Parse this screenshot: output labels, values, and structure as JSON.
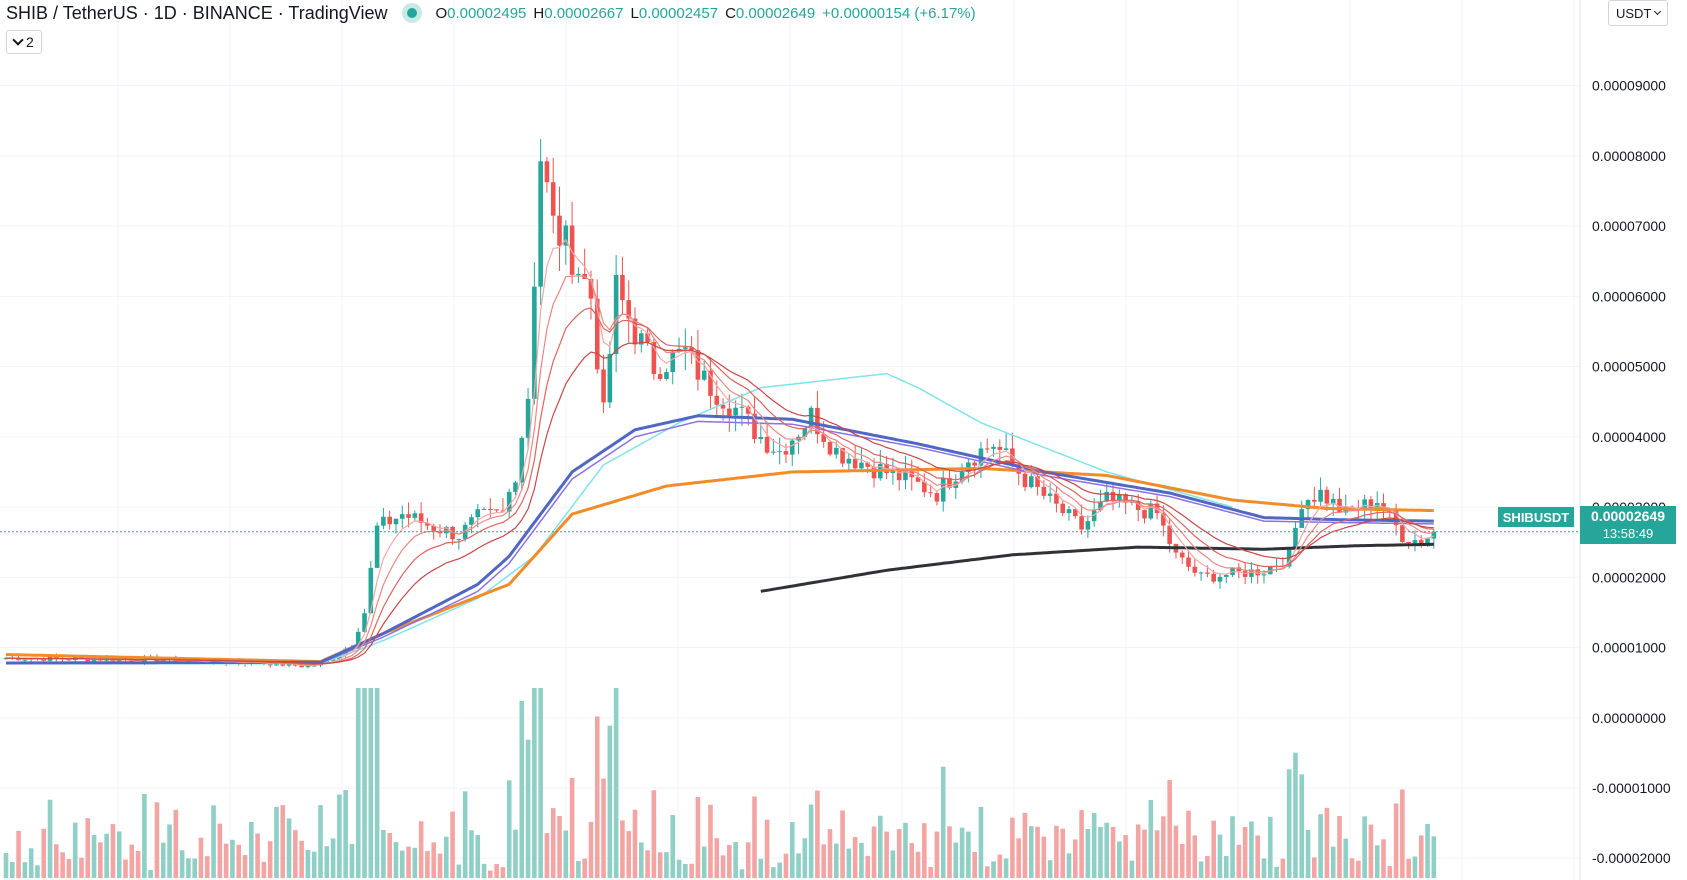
{
  "header": {
    "symbol_title": "SHIB / TetherUS · 1D · BINANCE · TradingView",
    "ohlc": {
      "o_label": "O",
      "o_value": "0.00002495",
      "h_label": "H",
      "h_value": "0.00002667",
      "l_label": "L",
      "l_value": "0.00002457",
      "c_label": "C",
      "c_value": "0.00002649",
      "change": "+0.00000154 (+6.17%)"
    },
    "indicator_count": "2"
  },
  "toolbar": {
    "currency": "USDT"
  },
  "last_price": {
    "symbol": "SHIBUSDT",
    "price": "0.00002649",
    "countdown": "13:58:49"
  },
  "colors": {
    "up": "#26a69a",
    "down": "#ef5350",
    "vol_up": "#8fcfc6",
    "vol_down": "#f3a5a4",
    "ma_orange": "#f28c28",
    "ma_blue": "#5067c4",
    "ma_purple": "#8c70e6",
    "ma_cyan": "#7fe3ec",
    "ma_black": "#2f3338",
    "ribbon": [
      "#f4a8a5",
      "#ec8882",
      "#e0625d",
      "#c84848"
    ]
  },
  "chart_data": {
    "type": "candlestick",
    "y_ticks": [
      "0.00009000",
      "0.00008000",
      "0.00007000",
      "0.00006000",
      "0.00005000",
      "0.00004000",
      "0.00003000",
      "0.00002000",
      "0.00001000",
      "0.00000000",
      "-0.00001000",
      "-0.00002000"
    ],
    "y_tick_values": [
      9e-05,
      8e-05,
      7e-05,
      6e-05,
      5e-05,
      4e-05,
      3e-05,
      2e-05,
      1e-05,
      0,
      -1e-05,
      -2e-05
    ],
    "ylim": [
      -2.31e-05,
      0.0001022
    ],
    "current_price": 2.649e-05,
    "anchors": [
      [
        0,
        8.5e-06
      ],
      [
        25,
        8.2e-06
      ],
      [
        40,
        7.9e-06
      ],
      [
        48,
        7.3e-06
      ],
      [
        51,
        8e-06
      ],
      [
        55,
        1.05e-05
      ],
      [
        57,
        1.5e-05
      ],
      [
        59,
        2.7e-05
      ],
      [
        63,
        2.9e-05
      ],
      [
        67,
        2.75e-05
      ],
      [
        72,
        2.6e-05
      ],
      [
        75,
        2.85e-05
      ],
      [
        79,
        2.9e-05
      ],
      [
        81,
        3.5e-05
      ],
      [
        83,
        4.6e-05
      ],
      [
        85,
        8e-05
      ],
      [
        87,
        7e-05
      ],
      [
        90,
        6.6e-05
      ],
      [
        93,
        6e-05
      ],
      [
        95,
        4.3e-05
      ],
      [
        97,
        6.1e-05
      ],
      [
        100,
        5.5e-05
      ],
      [
        103,
        5e-05
      ],
      [
        108,
        5.2e-05
      ],
      [
        111,
        4.8e-05
      ],
      [
        115,
        4.5e-05
      ],
      [
        120,
        4e-05
      ],
      [
        123,
        3.8e-05
      ],
      [
        128,
        4.3e-05
      ],
      [
        132,
        3.8e-05
      ],
      [
        137,
        3.6e-05
      ],
      [
        143,
        3.4e-05
      ],
      [
        148,
        3.2e-05
      ],
      [
        153,
        3.7e-05
      ],
      [
        157,
        3.9e-05
      ],
      [
        162,
        3.4e-05
      ],
      [
        167,
        3e-05
      ],
      [
        171,
        2.7e-05
      ],
      [
        175,
        3.1e-05
      ],
      [
        179,
        3e-05
      ],
      [
        183,
        2.9e-05
      ],
      [
        186,
        2.3e-05
      ],
      [
        190,
        2e-05
      ],
      [
        200,
        2.1e-05
      ],
      [
        204,
        2.3e-05
      ],
      [
        206,
        3.1e-05
      ],
      [
        209,
        3.2e-05
      ],
      [
        213,
        2.9e-05
      ],
      [
        218,
        3.1e-05
      ],
      [
        222,
        2.6e-05
      ],
      [
        225,
        2.5e-05
      ],
      [
        227,
        2.65e-05
      ]
    ],
    "ma_lines": {
      "orange": [
        [
          0,
          9e-06
        ],
        [
          50,
          8e-06
        ],
        [
          60,
          1.2e-05
        ],
        [
          80,
          1.9e-05
        ],
        [
          90,
          2.9e-05
        ],
        [
          105,
          3.3e-05
        ],
        [
          125,
          3.5e-05
        ],
        [
          155,
          3.55e-05
        ],
        [
          175,
          3.45e-05
        ],
        [
          195,
          3.1e-05
        ],
        [
          210,
          2.98e-05
        ],
        [
          227,
          2.95e-05
        ]
      ],
      "blue": [
        [
          0,
          7.8e-06
        ],
        [
          50,
          7.9e-06
        ],
        [
          60,
          1.2e-05
        ],
        [
          75,
          1.9e-05
        ],
        [
          80,
          2.3e-05
        ],
        [
          90,
          3.5e-05
        ],
        [
          100,
          4.1e-05
        ],
        [
          110,
          4.3e-05
        ],
        [
          125,
          4.25e-05
        ],
        [
          145,
          3.9e-05
        ],
        [
          165,
          3.5e-05
        ],
        [
          185,
          3.2e-05
        ],
        [
          200,
          2.85e-05
        ],
        [
          212,
          2.82e-05
        ],
        [
          227,
          2.8e-05
        ]
      ],
      "purple": [
        [
          0,
          7.7e-06
        ],
        [
          50,
          7.8e-06
        ],
        [
          60,
          1.15e-05
        ],
        [
          75,
          1.8e-05
        ],
        [
          80,
          2.2e-05
        ],
        [
          90,
          3.4e-05
        ],
        [
          100,
          4e-05
        ],
        [
          110,
          4.22e-05
        ],
        [
          125,
          4.18e-05
        ],
        [
          145,
          3.85e-05
        ],
        [
          165,
          3.45e-05
        ],
        [
          185,
          3.15e-05
        ],
        [
          200,
          2.8e-05
        ],
        [
          212,
          2.78e-05
        ],
        [
          227,
          2.76e-05
        ]
      ],
      "cyan": [
        [
          0,
          7.7e-06
        ],
        [
          50,
          7.7e-06
        ],
        [
          60,
          1.1e-05
        ],
        [
          75,
          1.7e-05
        ],
        [
          84,
          2.3e-05
        ],
        [
          95,
          3.6e-05
        ],
        [
          107,
          4.2e-05
        ],
        [
          120,
          4.7e-05
        ],
        [
          140,
          4.9e-05
        ],
        [
          145,
          4.7e-05
        ],
        [
          155,
          4.2e-05
        ],
        [
          175,
          3.5e-05
        ],
        [
          195,
          3e-05
        ]
      ],
      "black": [
        [
          120,
          1.8e-05
        ],
        [
          140,
          2.1e-05
        ],
        [
          160,
          2.32e-05
        ],
        [
          180,
          2.43e-05
        ],
        [
          200,
          2.4e-05
        ],
        [
          215,
          2.45e-05
        ],
        [
          227,
          2.47e-05
        ]
      ]
    }
  }
}
